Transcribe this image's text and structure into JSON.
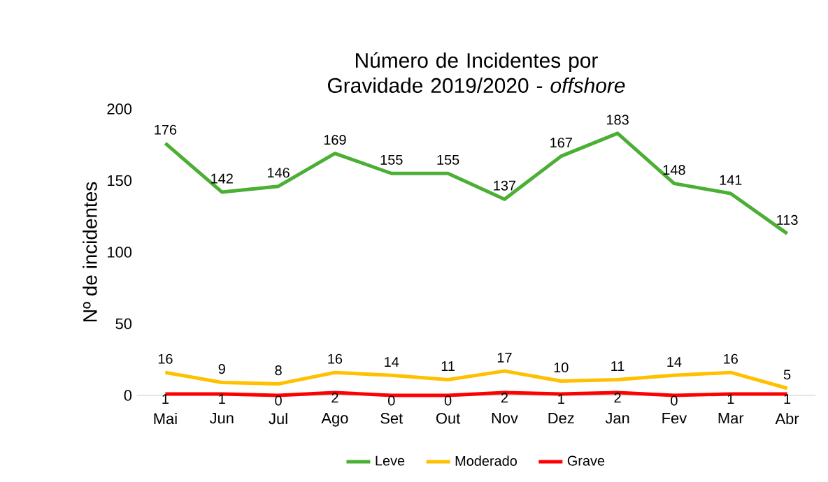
{
  "chart_data": {
    "type": "line",
    "title": "Número de Incidentes por Gravidade 2019/2020 - *offshore*",
    "ylabel": "Nº de incidentes",
    "categories": [
      "Mai",
      "Jun",
      "Jul",
      "Ago",
      "Set",
      "Out",
      "Nov",
      "Dez",
      "Jan",
      "Fev",
      "Mar",
      "Abr"
    ],
    "series": [
      {
        "name": "Leve",
        "color": "#4caf35",
        "values": [
          176,
          142,
          146,
          169,
          155,
          155,
          137,
          167,
          183,
          148,
          141,
          113
        ]
      },
      {
        "name": "Moderado",
        "color": "#ffc000",
        "values": [
          16,
          9,
          8,
          16,
          14,
          11,
          17,
          10,
          11,
          14,
          16,
          5
        ]
      },
      {
        "name": "Grave",
        "color": "#ff0000",
        "values": [
          1,
          1,
          0,
          2,
          0,
          0,
          2,
          1,
          2,
          0,
          1,
          1
        ]
      }
    ],
    "ylim": [
      0,
      200
    ],
    "yticks": [
      0,
      50,
      100,
      150,
      200
    ],
    "data_labels": true,
    "legend": "bottom",
    "grid": false,
    "marker": "none",
    "line_style": "solid"
  }
}
